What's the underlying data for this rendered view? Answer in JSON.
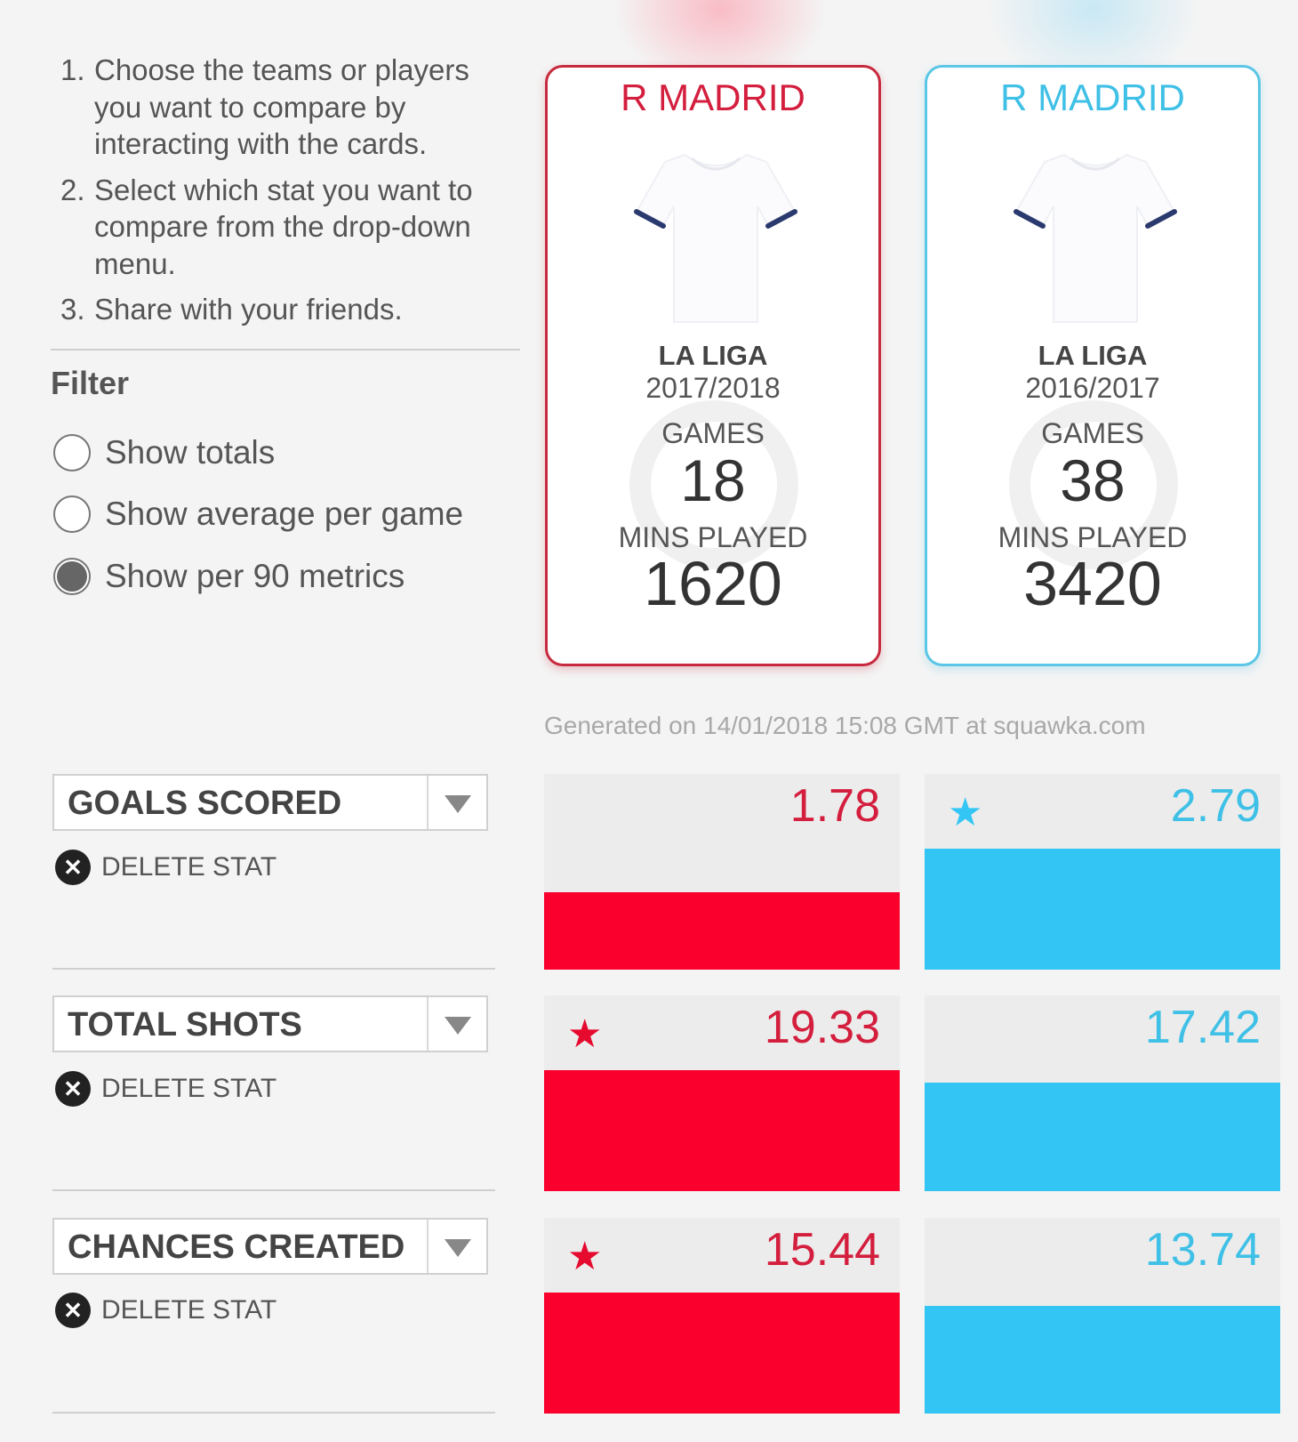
{
  "instructions": [
    {
      "num": "1.",
      "text": "Choose the teams or players you want to compare by interacting with the cards."
    },
    {
      "num": "2.",
      "text": "Select which stat you want to compare from the drop-down menu."
    },
    {
      "num": "3.",
      "text": "Share with your friends."
    }
  ],
  "filter": {
    "title": "Filter",
    "options": [
      {
        "label": "Show totals",
        "selected": false
      },
      {
        "label": "Show average per game",
        "selected": false
      },
      {
        "label": "Show per 90 metrics",
        "selected": true
      }
    ]
  },
  "cards": [
    {
      "team": "R MADRID",
      "league": "LA LIGA",
      "season": "2017/2018",
      "games_label": "GAMES",
      "games": "18",
      "mins_label": "MINS PLAYED",
      "mins": "1620",
      "color": "#d41e3d"
    },
    {
      "team": "R MADRID",
      "league": "LA LIGA",
      "season": "2016/2017",
      "games_label": "GAMES",
      "games": "38",
      "mins_label": "MINS PLAYED",
      "mins": "3420",
      "color": "#3fc0e6"
    }
  ],
  "generated": "Generated on 14/01/2018 15:08 GMT at squawka.com",
  "delete_label": "DELETE STAT",
  "stats": [
    {
      "name": "GOALS SCORED",
      "left": {
        "value": "1.78",
        "fill": 0.64,
        "star": false
      },
      "right": {
        "value": "2.79",
        "fill": 1.0,
        "star": true
      }
    },
    {
      "name": "TOTAL SHOTS",
      "left": {
        "value": "19.33",
        "fill": 1.0,
        "star": true
      },
      "right": {
        "value": "17.42",
        "fill": 0.9,
        "star": false
      }
    },
    {
      "name": "CHANCES CREATED",
      "left": {
        "value": "15.44",
        "fill": 1.0,
        "star": true
      },
      "right": {
        "value": "13.74",
        "fill": 0.89,
        "star": false
      }
    }
  ],
  "colors": {
    "left": "#fa002d",
    "right": "#33c6f4"
  },
  "icons": {
    "star": "star-icon",
    "delete": "close-circle-icon",
    "dropdown": "chevron-down-icon",
    "shirt": "shirt-icon"
  }
}
